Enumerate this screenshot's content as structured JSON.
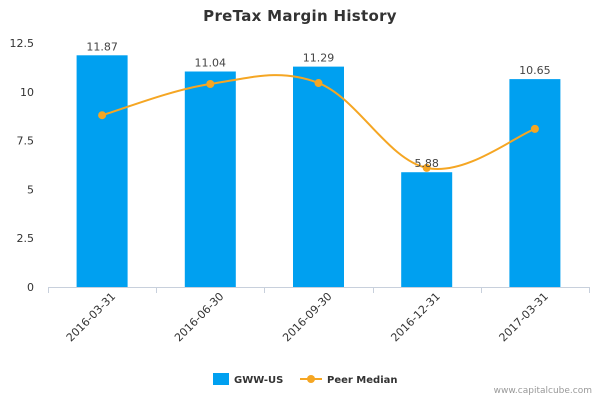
{
  "chart_data": {
    "type": "bar",
    "title": "PreTax Margin History",
    "categories": [
      "2016-03-31",
      "2016-06-30",
      "2016-09-30",
      "2016-12-31",
      "2017-03-31"
    ],
    "series": [
      {
        "name": "GWW-US",
        "kind": "bar",
        "color": "#00a0f0",
        "values": [
          11.87,
          11.04,
          11.29,
          5.88,
          10.65
        ],
        "labels": [
          "11.87",
          "11.04",
          "11.29",
          "5.88",
          "10.65"
        ]
      },
      {
        "name": "Peer Median",
        "kind": "line",
        "color": "#f5a623",
        "values": [
          8.8,
          10.4,
          10.45,
          6.1,
          8.1
        ]
      }
    ],
    "ylim": [
      0,
      12.5
    ],
    "yticks": [
      "0",
      "2.5",
      "5",
      "7.5",
      "10",
      "12.5"
    ],
    "ytick_values": [
      0,
      2.5,
      5,
      7.5,
      10,
      12.5
    ],
    "grid": false,
    "legend_position": "bottom-center"
  },
  "watermark": "www.capitalcube.com"
}
